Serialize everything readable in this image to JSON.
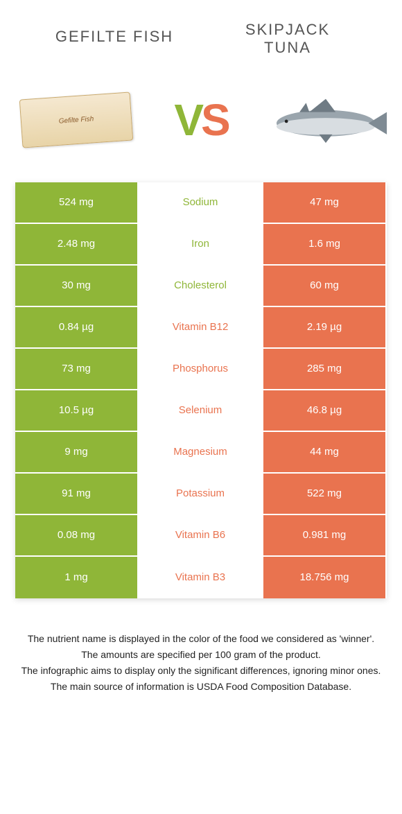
{
  "colors": {
    "green": "#8fb638",
    "orange": "#e9734f",
    "midBg": "#ffffff"
  },
  "header": {
    "left": "GEFILTE FISH",
    "right": "SKIPJACK\nTUNA",
    "vs_v": "V",
    "vs_s": "S",
    "gefilte_pkg": "Gefilte Fish"
  },
  "rows": [
    {
      "name": "Sodium",
      "left": "524 mg",
      "right": "47 mg",
      "winner": "green"
    },
    {
      "name": "Iron",
      "left": "2.48 mg",
      "right": "1.6 mg",
      "winner": "green"
    },
    {
      "name": "Cholesterol",
      "left": "30 mg",
      "right": "60 mg",
      "winner": "green"
    },
    {
      "name": "Vitamin B12",
      "left": "0.84 µg",
      "right": "2.19 µg",
      "winner": "orange"
    },
    {
      "name": "Phosphorus",
      "left": "73 mg",
      "right": "285 mg",
      "winner": "orange"
    },
    {
      "name": "Selenium",
      "left": "10.5 µg",
      "right": "46.8 µg",
      "winner": "orange"
    },
    {
      "name": "Magnesium",
      "left": "9 mg",
      "right": "44 mg",
      "winner": "orange"
    },
    {
      "name": "Potassium",
      "left": "91 mg",
      "right": "522 mg",
      "winner": "orange"
    },
    {
      "name": "Vitamin B6",
      "left": "0.08 mg",
      "right": "0.981 mg",
      "winner": "orange"
    },
    {
      "name": "Vitamin B3",
      "left": "1 mg",
      "right": "18.756 mg",
      "winner": "orange"
    }
  ],
  "footer": {
    "l1": "The nutrient name is displayed in the color of the food we considered as 'winner'.",
    "l2": "The amounts are specified per 100 gram of the product.",
    "l3": "The infographic aims to display only the significant differences, ignoring minor ones.",
    "l4": "The main source of information is USDA Food Composition Database."
  }
}
